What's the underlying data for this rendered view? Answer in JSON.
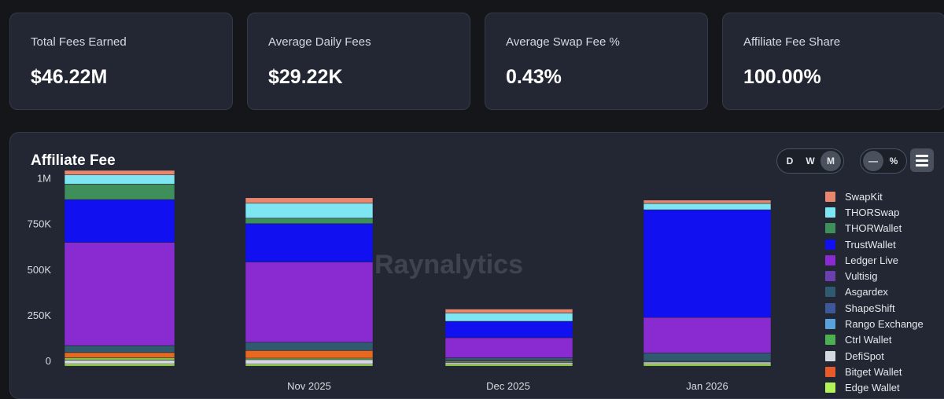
{
  "kpis": [
    {
      "label": "Total Fees Earned",
      "value": "$46.22M"
    },
    {
      "label": "Average Daily Fees",
      "value": "$29.22K"
    },
    {
      "label": "Average Swap Fee %",
      "value": "0.43%"
    },
    {
      "label": "Affiliate Fee Share",
      "value": "100.00%"
    }
  ],
  "panel": {
    "title": "Affiliate Fee",
    "watermark": "Raynalytics",
    "watermark_logo": "R",
    "period_buttons": [
      {
        "label": "D",
        "active": false
      },
      {
        "label": "W",
        "active": false
      },
      {
        "label": "M",
        "active": true
      }
    ],
    "mode_buttons": [
      {
        "label": "—",
        "active": true
      },
      {
        "label": "%",
        "active": false
      }
    ],
    "menu_icon": "hamburger-menu-icon"
  },
  "chart_data": {
    "type": "bar",
    "stacked": true,
    "categories": [
      "",
      "Nov 2025",
      "Dec 2025",
      "Jan 2026"
    ],
    "ylim": [
      0,
      1050000
    ],
    "yticks": [
      {
        "value": 0,
        "label": "0"
      },
      {
        "value": 250000,
        "label": "250K"
      },
      {
        "value": 500000,
        "label": "500K"
      },
      {
        "value": 750000,
        "label": "750K"
      },
      {
        "value": 1000000,
        "label": "1M"
      }
    ],
    "grid": false,
    "legend_position": "right",
    "series": [
      {
        "name": "Edge Wallet",
        "color": "#b2f35a",
        "values": [
          12000,
          10000,
          10000,
          12000
        ]
      },
      {
        "name": "Bitget Wallet",
        "color": "#e85a2a",
        "values": [
          0,
          0,
          0,
          0
        ]
      },
      {
        "name": "DefiSpot",
        "color": "#d5d8de",
        "values": [
          20000,
          25000,
          10000,
          10000
        ]
      },
      {
        "name": "Ctrl Wallet",
        "color": "#4caf50",
        "values": [
          0,
          0,
          0,
          0
        ]
      },
      {
        "name": "Rango Exchange",
        "color": "#5aa2db",
        "values": [
          0,
          0,
          0,
          0
        ]
      },
      {
        "name": "ShapeShift",
        "color": "#8fc24a",
        "values": [
          14000,
          8000,
          6000,
          4000
        ]
      },
      {
        "name": "Vultisig",
        "color": "#e8681f",
        "values": [
          28000,
          42000,
          4000,
          0
        ]
      },
      {
        "name": "Asgardex",
        "color": "#305a70",
        "values": [
          38000,
          45000,
          15000,
          45000
        ]
      },
      {
        "name": "Ledger Live",
        "color": "#8a2bd1",
        "values": [
          565000,
          440000,
          110000,
          195000
        ]
      },
      {
        "name": "TrustWallet",
        "color": "#1010f0",
        "values": [
          235000,
          210000,
          90000,
          590000
        ]
      },
      {
        "name": "THORWallet",
        "color": "#3f8f5a",
        "values": [
          85000,
          30000,
          0,
          0
        ]
      },
      {
        "name": "THORSwap",
        "color": "#7de6f2",
        "values": [
          50000,
          82000,
          45000,
          35000
        ]
      },
      {
        "name": "SwapKit",
        "color": "#e8876e",
        "values": [
          25000,
          30000,
          22000,
          18000
        ]
      }
    ],
    "legend": [
      {
        "name": "SwapKit",
        "color": "#e8876e"
      },
      {
        "name": "THORSwap",
        "color": "#7de6f2"
      },
      {
        "name": "THORWallet",
        "color": "#3f8f5a"
      },
      {
        "name": "TrustWallet",
        "color": "#1010f0"
      },
      {
        "name": "Ledger Live",
        "color": "#8a2bd1"
      },
      {
        "name": "Vultisig",
        "color": "#6a3fb0"
      },
      {
        "name": "Asgardex",
        "color": "#305a70"
      },
      {
        "name": "ShapeShift",
        "color": "#3c5898"
      },
      {
        "name": "Rango Exchange",
        "color": "#5aa2db"
      },
      {
        "name": "Ctrl Wallet",
        "color": "#4caf50"
      },
      {
        "name": "DefiSpot",
        "color": "#d5d8de"
      },
      {
        "name": "Bitget Wallet",
        "color": "#e85a2a"
      },
      {
        "name": "Edge Wallet",
        "color": "#b2f35a"
      }
    ]
  }
}
